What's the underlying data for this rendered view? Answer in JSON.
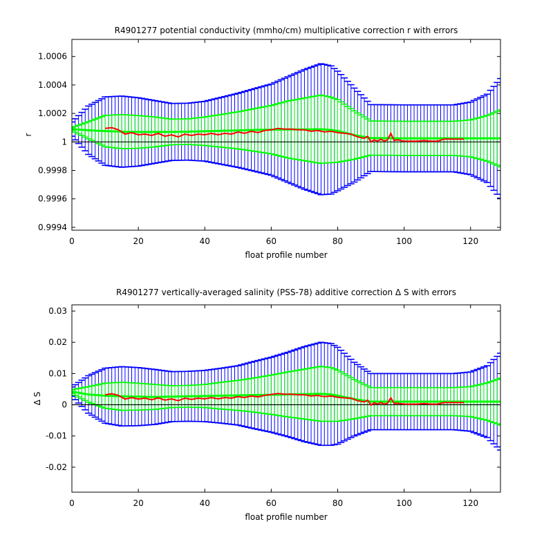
{
  "chart_data": [
    {
      "type": "line",
      "title": "R4901277 potential conductivity (mmho/cm) multiplicative correction r with errors",
      "xlabel": "float profile number",
      "ylabel": "r",
      "xlim": [
        0,
        129
      ],
      "ylim": [
        0.99938,
        1.00072
      ],
      "xticks": [
        0,
        20,
        40,
        60,
        80,
        100,
        120
      ],
      "yticks": [
        0.9994,
        0.9996,
        0.9998,
        1,
        1.0002,
        1.0004,
        1.0006
      ],
      "ytick_labels": [
        "0.9994",
        "0.9996",
        "0.9998",
        "1",
        "1.0002",
        "1.0004",
        "1.0006"
      ],
      "reference_line": 1,
      "grid": false,
      "series": [
        {
          "role": "fit",
          "color": "#00ff00",
          "line_width": 3,
          "x": [
            0,
            5,
            10,
            15,
            20,
            25,
            30,
            35,
            40,
            45,
            50,
            55,
            60,
            65,
            70,
            75,
            78,
            80,
            85,
            90,
            95,
            100,
            105,
            110,
            115,
            120,
            125,
            129
          ],
          "y": [
            1.00009,
            1.000082,
            1.000076,
            1.000072,
            1.00007,
            1.00007,
            1.00007,
            1.000072,
            1.000075,
            1.000078,
            1.000081,
            1.000084,
            1.000086,
            1.000087,
            1.000088,
            1.000089,
            1.000084,
            1.000077,
            1.000048,
            1.000027,
            1.000026,
            1.000025,
            1.000025,
            1.000025,
            1.000025,
            1.000025,
            1.000025,
            1.000025
          ],
          "error_inner": [
            1e-05,
            6e-05,
            0.00011,
            0.00012,
            0.000115,
            0.000105,
            9e-05,
            9e-05,
            0.0001,
            0.000115,
            0.00013,
            0.00015,
            0.00017,
            0.0002,
            0.00022,
            0.00024,
            0.00023,
            0.00022,
            0.00017,
            0.00012,
            0.00012,
            0.00012,
            0.00012,
            0.00012,
            0.00012,
            0.00013,
            0.00016,
            0.0002
          ],
          "error_outer": [
            5e-05,
            0.00017,
            0.00024,
            0.00025,
            0.00024,
            0.00022,
            0.0002,
            0.0002,
            0.00021,
            0.000235,
            0.00026,
            0.00029,
            0.00032,
            0.00037,
            0.00042,
            0.00046,
            0.00045,
            0.00042,
            0.00033,
            0.000235,
            0.000235,
            0.000235,
            0.000235,
            0.000235,
            0.000235,
            0.000255,
            0.00031,
            0.00042
          ]
        },
        {
          "role": "estimate",
          "color": "#ff0000",
          "line_width": 2,
          "x": [
            10,
            12,
            14,
            16,
            18,
            20,
            22,
            24,
            26,
            28,
            30,
            32,
            34,
            36,
            38,
            40,
            42,
            44,
            46,
            48,
            50,
            52,
            54,
            56,
            58,
            60,
            62,
            64,
            66,
            68,
            70,
            72,
            74,
            76,
            78,
            80,
            82,
            84,
            86,
            88,
            89,
            90,
            91,
            92,
            93,
            94,
            95,
            96,
            97,
            98,
            100,
            102,
            104,
            106,
            108,
            110,
            112,
            114,
            116,
            117,
            118
          ],
          "y": [
            1.000095,
            1.0001,
            1.000085,
            1.000055,
            1.000065,
            1.00005,
            1.000055,
            1.000045,
            1.00006,
            1.00004,
            1.00005,
            1.000035,
            1.000055,
            1.000045,
            1.000055,
            1.00005,
            1.00006,
            1.00005,
            1.00006,
            1.000055,
            1.00007,
            1.00006,
            1.000075,
            1.000065,
            1.00008,
            1.000085,
            1.000095,
            1.00009,
            1.00009,
            1.000085,
            1.000085,
            1.000075,
            1.00008,
            1.00007,
            1.000075,
            1.000065,
            1.00006,
            1.000055,
            1.000035,
            1.000025,
            1.00004,
            1.0,
            1.000015,
            1.000005,
            1.00002,
            1.000005,
            1.000015,
            1.00006,
            1.00001,
            1.000015,
            1.000005,
            1.000005,
            1.000005,
            1.00001,
            1.000005,
            1.000005,
            1.00002,
            1.00002,
            1.00002,
            1.00002,
            1.00002
          ]
        }
      ]
    },
    {
      "type": "line",
      "title": "R4901277 vertically-averaged salinity (PSS-78) additive correction Δ S with errors",
      "xlabel": "float profile number",
      "ylabel": "Δ S",
      "xlim": [
        0,
        129
      ],
      "ylim": [
        -0.028,
        0.032
      ],
      "xticks": [
        0,
        20,
        40,
        60,
        80,
        100,
        120
      ],
      "yticks": [
        -0.02,
        -0.01,
        0,
        0.01,
        0.02,
        0.03
      ],
      "ytick_labels": [
        "-0.02",
        "-0.01",
        "0",
        "0.01",
        "0.02",
        "0.03"
      ],
      "reference_line": 0,
      "grid": false,
      "series": [
        {
          "role": "fit",
          "color": "#00ff00",
          "line_width": 3,
          "x": [
            0,
            5,
            10,
            15,
            20,
            25,
            30,
            35,
            40,
            45,
            50,
            55,
            60,
            65,
            70,
            75,
            78,
            80,
            85,
            90,
            95,
            100,
            105,
            110,
            115,
            120,
            125,
            129
          ],
          "y": [
            0.0042,
            0.0033,
            0.0029,
            0.0027,
            0.0026,
            0.0025,
            0.0026,
            0.0027,
            0.0028,
            0.0029,
            0.003,
            0.0031,
            0.0032,
            0.0033,
            0.0034,
            0.0035,
            0.0033,
            0.0029,
            0.0018,
            0.001,
            0.001,
            0.001,
            0.001,
            0.001,
            0.001,
            0.001,
            0.001,
            0.001
          ],
          "error_inner": [
            0.0006,
            0.0025,
            0.004,
            0.0045,
            0.0043,
            0.004,
            0.0035,
            0.0035,
            0.0037,
            0.0043,
            0.0048,
            0.0055,
            0.0063,
            0.0072,
            0.008,
            0.0088,
            0.0086,
            0.0082,
            0.0063,
            0.0045,
            0.0045,
            0.0045,
            0.0045,
            0.0045,
            0.0045,
            0.0048,
            0.006,
            0.0075
          ],
          "error_outer": [
            0.0015,
            0.006,
            0.0088,
            0.0095,
            0.0093,
            0.0088,
            0.008,
            0.008,
            0.0082,
            0.0088,
            0.0095,
            0.0108,
            0.012,
            0.0135,
            0.0152,
            0.0165,
            0.0163,
            0.0155,
            0.0118,
            0.009,
            0.009,
            0.009,
            0.009,
            0.009,
            0.009,
            0.0095,
            0.0115,
            0.0155
          ]
        },
        {
          "role": "estimate",
          "color": "#ff0000",
          "line_width": 2,
          "x": [
            10,
            12,
            14,
            16,
            18,
            20,
            22,
            24,
            26,
            28,
            30,
            32,
            34,
            36,
            38,
            40,
            42,
            44,
            46,
            48,
            50,
            52,
            54,
            56,
            58,
            60,
            62,
            64,
            66,
            68,
            70,
            72,
            74,
            76,
            78,
            80,
            82,
            84,
            86,
            88,
            89,
            90,
            91,
            92,
            93,
            94,
            95,
            96,
            97,
            98,
            100,
            102,
            104,
            106,
            108,
            110,
            112,
            114,
            116,
            117,
            118
          ],
          "y": [
            0.0032,
            0.0035,
            0.003,
            0.0018,
            0.0023,
            0.0018,
            0.0021,
            0.0016,
            0.0022,
            0.0015,
            0.0019,
            0.0013,
            0.0021,
            0.0017,
            0.0021,
            0.0019,
            0.0023,
            0.0019,
            0.0023,
            0.0021,
            0.0026,
            0.0023,
            0.0028,
            0.0025,
            0.003,
            0.0033,
            0.0036,
            0.0034,
            0.0034,
            0.0032,
            0.0032,
            0.0028,
            0.003,
            0.0026,
            0.0028,
            0.0024,
            0.0022,
            0.0021,
            0.0013,
            0.0009,
            0.0015,
            -0.0001,
            0.0006,
            0.0002,
            0.0007,
            0.0002,
            0.0005,
            0.0022,
            0.0004,
            0.0005,
            0.0002,
            0.0002,
            0.0002,
            0.0004,
            0.0002,
            0.0002,
            0.0007,
            0.0007,
            0.0007,
            0.0007,
            0.0007
          ]
        }
      ]
    }
  ]
}
